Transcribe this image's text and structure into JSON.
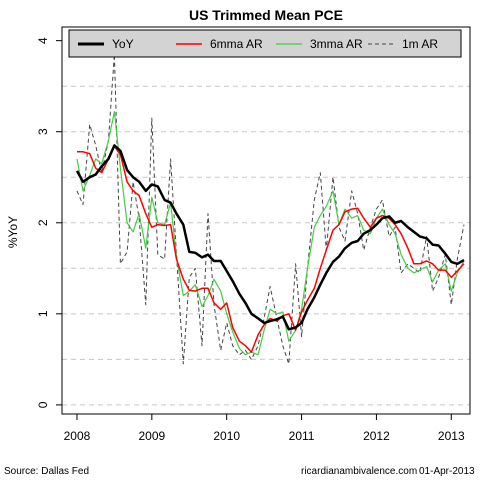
{
  "chart_data": {
    "type": "line",
    "title": "US Trimmed Mean PCE",
    "ylabel": "%YoY",
    "xlabel": "",
    "xlim": [
      2007.8,
      2013.25
    ],
    "ylim": [
      -0.1,
      4.15
    ],
    "x_ticks": [
      2008,
      2009,
      2010,
      2011,
      2012,
      2013
    ],
    "x_tick_labels": [
      "2008",
      "2009",
      "2010",
      "2011",
      "2012",
      "2013"
    ],
    "y_ticks": [
      0,
      1,
      2,
      3,
      4
    ],
    "y_tick_labels": [
      "0",
      "1",
      "2",
      "3",
      "4"
    ],
    "y_gridlines": [
      0,
      0.5,
      1,
      1.5,
      2,
      2.5,
      3,
      3.5
    ],
    "grid": "horizontal dashed",
    "legend_position": "top",
    "source": "Source: Dallas Fed",
    "credit": "ricardianambivalence.com",
    "date": "01-Apr-2013",
    "series": [
      {
        "name": "YoY",
        "color": "#000000",
        "width": 2.5,
        "dash": "",
        "values": [
          [
            2008.0,
            2.57
          ],
          [
            2008.08,
            2.45
          ],
          [
            2008.17,
            2.5
          ],
          [
            2008.25,
            2.53
          ],
          [
            2008.33,
            2.62
          ],
          [
            2008.42,
            2.7
          ],
          [
            2008.5,
            2.85
          ],
          [
            2008.58,
            2.79
          ],
          [
            2008.67,
            2.58
          ],
          [
            2008.75,
            2.5
          ],
          [
            2008.83,
            2.45
          ],
          [
            2008.92,
            2.35
          ],
          [
            2009.0,
            2.42
          ],
          [
            2009.08,
            2.4
          ],
          [
            2009.17,
            2.25
          ],
          [
            2009.25,
            2.22
          ],
          [
            2009.33,
            2.1
          ],
          [
            2009.42,
            1.98
          ],
          [
            2009.5,
            1.68
          ],
          [
            2009.58,
            1.67
          ],
          [
            2009.67,
            1.62
          ],
          [
            2009.75,
            1.65
          ],
          [
            2009.83,
            1.58
          ],
          [
            2009.92,
            1.58
          ],
          [
            2010.0,
            1.47
          ],
          [
            2010.08,
            1.36
          ],
          [
            2010.17,
            1.22
          ],
          [
            2010.25,
            1.12
          ],
          [
            2010.33,
            1.0
          ],
          [
            2010.42,
            0.95
          ],
          [
            2010.5,
            0.9
          ],
          [
            2010.58,
            0.92
          ],
          [
            2010.67,
            0.94
          ],
          [
            2010.75,
            0.97
          ],
          [
            2010.83,
            0.83
          ],
          [
            2010.92,
            0.85
          ],
          [
            2011.0,
            0.9
          ],
          [
            2011.08,
            1.05
          ],
          [
            2011.17,
            1.18
          ],
          [
            2011.25,
            1.32
          ],
          [
            2011.33,
            1.45
          ],
          [
            2011.42,
            1.57
          ],
          [
            2011.5,
            1.63
          ],
          [
            2011.58,
            1.72
          ],
          [
            2011.67,
            1.78
          ],
          [
            2011.75,
            1.8
          ],
          [
            2011.83,
            1.88
          ],
          [
            2011.92,
            1.92
          ],
          [
            2012.0,
            1.98
          ],
          [
            2012.08,
            2.05
          ],
          [
            2012.17,
            2.07
          ],
          [
            2012.25,
            2.0
          ],
          [
            2012.33,
            2.02
          ],
          [
            2012.42,
            1.95
          ],
          [
            2012.5,
            1.9
          ],
          [
            2012.58,
            1.85
          ],
          [
            2012.67,
            1.83
          ],
          [
            2012.75,
            1.76
          ],
          [
            2012.83,
            1.75
          ],
          [
            2012.92,
            1.66
          ],
          [
            2013.0,
            1.57
          ],
          [
            2013.08,
            1.55
          ],
          [
            2013.17,
            1.59
          ]
        ]
      },
      {
        "name": "6mma AR",
        "color": "#ff0000",
        "width": 1.5,
        "dash": "",
        "values": [
          [
            2008.0,
            2.78
          ],
          [
            2008.08,
            2.78
          ],
          [
            2008.17,
            2.76
          ],
          [
            2008.25,
            2.6
          ],
          [
            2008.33,
            2.55
          ],
          [
            2008.42,
            2.7
          ],
          [
            2008.5,
            2.84
          ],
          [
            2008.58,
            2.75
          ],
          [
            2008.67,
            2.45
          ],
          [
            2008.75,
            2.35
          ],
          [
            2008.83,
            2.3
          ],
          [
            2008.92,
            2.1
          ],
          [
            2009.0,
            1.95
          ],
          [
            2009.08,
            1.98
          ],
          [
            2009.17,
            1.97
          ],
          [
            2009.25,
            1.98
          ],
          [
            2009.33,
            1.6
          ],
          [
            2009.42,
            1.38
          ],
          [
            2009.5,
            1.26
          ],
          [
            2009.58,
            1.25
          ],
          [
            2009.67,
            1.28
          ],
          [
            2009.75,
            1.28
          ],
          [
            2009.83,
            1.12
          ],
          [
            2009.92,
            1.05
          ],
          [
            2010.0,
            1.12
          ],
          [
            2010.08,
            0.85
          ],
          [
            2010.17,
            0.7
          ],
          [
            2010.25,
            0.65
          ],
          [
            2010.33,
            0.58
          ],
          [
            2010.42,
            0.77
          ],
          [
            2010.5,
            0.88
          ],
          [
            2010.58,
            0.95
          ],
          [
            2010.67,
            0.92
          ],
          [
            2010.75,
            0.98
          ],
          [
            2010.83,
            1.0
          ],
          [
            2010.92,
            0.82
          ],
          [
            2011.0,
            1.02
          ],
          [
            2011.08,
            1.15
          ],
          [
            2011.17,
            1.28
          ],
          [
            2011.25,
            1.5
          ],
          [
            2011.33,
            1.7
          ],
          [
            2011.42,
            1.92
          ],
          [
            2011.5,
            1.98
          ],
          [
            2011.58,
            2.12
          ],
          [
            2011.67,
            2.15
          ],
          [
            2011.75,
            2.16
          ],
          [
            2011.83,
            2.05
          ],
          [
            2011.92,
            1.95
          ],
          [
            2012.0,
            2.05
          ],
          [
            2012.08,
            2.08
          ],
          [
            2012.17,
            2.05
          ],
          [
            2012.25,
            1.98
          ],
          [
            2012.33,
            1.88
          ],
          [
            2012.42,
            1.72
          ],
          [
            2012.5,
            1.55
          ],
          [
            2012.58,
            1.55
          ],
          [
            2012.67,
            1.58
          ],
          [
            2012.75,
            1.55
          ],
          [
            2012.83,
            1.48
          ],
          [
            2012.92,
            1.48
          ],
          [
            2013.0,
            1.4
          ],
          [
            2013.08,
            1.47
          ],
          [
            2013.17,
            1.55
          ]
        ]
      },
      {
        "name": "3mma AR",
        "color": "#44cc44",
        "width": 1.2,
        "dash": "",
        "values": [
          [
            2008.0,
            2.7
          ],
          [
            2008.08,
            2.35
          ],
          [
            2008.17,
            2.52
          ],
          [
            2008.25,
            2.7
          ],
          [
            2008.33,
            2.65
          ],
          [
            2008.42,
            2.9
          ],
          [
            2008.5,
            3.22
          ],
          [
            2008.58,
            2.6
          ],
          [
            2008.67,
            2.0
          ],
          [
            2008.75,
            1.9
          ],
          [
            2008.83,
            2.1
          ],
          [
            2008.92,
            1.72
          ],
          [
            2009.0,
            2.28
          ],
          [
            2009.08,
            2.0
          ],
          [
            2009.17,
            1.98
          ],
          [
            2009.25,
            2.22
          ],
          [
            2009.33,
            1.62
          ],
          [
            2009.42,
            1.2
          ],
          [
            2009.5,
            1.25
          ],
          [
            2009.58,
            1.32
          ],
          [
            2009.67,
            1.08
          ],
          [
            2009.75,
            1.2
          ],
          [
            2009.83,
            1.38
          ],
          [
            2009.92,
            1.25
          ],
          [
            2010.0,
            1.0
          ],
          [
            2010.08,
            0.8
          ],
          [
            2010.17,
            0.62
          ],
          [
            2010.25,
            0.55
          ],
          [
            2010.33,
            0.58
          ],
          [
            2010.42,
            0.55
          ],
          [
            2010.5,
            0.82
          ],
          [
            2010.58,
            1.05
          ],
          [
            2010.67,
            1.0
          ],
          [
            2010.75,
            1.02
          ],
          [
            2010.83,
            0.7
          ],
          [
            2010.92,
            0.82
          ],
          [
            2011.0,
            1.05
          ],
          [
            2011.08,
            1.5
          ],
          [
            2011.17,
            1.95
          ],
          [
            2011.25,
            2.08
          ],
          [
            2011.33,
            2.18
          ],
          [
            2011.42,
            2.35
          ],
          [
            2011.5,
            1.98
          ],
          [
            2011.58,
            2.15
          ],
          [
            2011.67,
            2.05
          ],
          [
            2011.75,
            2.08
          ],
          [
            2011.83,
            1.92
          ],
          [
            2011.92,
            1.88
          ],
          [
            2012.0,
            2.05
          ],
          [
            2012.08,
            2.15
          ],
          [
            2012.17,
            1.98
          ],
          [
            2012.25,
            1.88
          ],
          [
            2012.33,
            1.65
          ],
          [
            2012.42,
            1.5
          ],
          [
            2012.5,
            1.45
          ],
          [
            2012.58,
            1.48
          ],
          [
            2012.67,
            1.52
          ],
          [
            2012.75,
            1.35
          ],
          [
            2012.83,
            1.48
          ],
          [
            2012.92,
            1.55
          ],
          [
            2013.0,
            1.25
          ],
          [
            2013.08,
            1.45
          ],
          [
            2013.17,
            1.58
          ]
        ]
      },
      {
        "name": "1m AR",
        "color": "#444444",
        "width": 1.0,
        "dash": "4,3",
        "values": [
          [
            2008.0,
            2.35
          ],
          [
            2008.08,
            2.2
          ],
          [
            2008.17,
            3.08
          ],
          [
            2008.25,
            2.85
          ],
          [
            2008.33,
            2.55
          ],
          [
            2008.42,
            2.9
          ],
          [
            2008.5,
            3.85
          ],
          [
            2008.58,
            1.55
          ],
          [
            2008.67,
            1.68
          ],
          [
            2008.75,
            2.45
          ],
          [
            2008.83,
            2.05
          ],
          [
            2008.92,
            1.1
          ],
          [
            2009.0,
            3.15
          ],
          [
            2009.08,
            1.65
          ],
          [
            2009.17,
            1.6
          ],
          [
            2009.25,
            2.7
          ],
          [
            2009.33,
            1.65
          ],
          [
            2009.42,
            0.45
          ],
          [
            2009.5,
            1.4
          ],
          [
            2009.58,
            1.5
          ],
          [
            2009.67,
            0.65
          ],
          [
            2009.75,
            2.1
          ],
          [
            2009.83,
            1.1
          ],
          [
            2009.92,
            0.6
          ],
          [
            2010.0,
            0.9
          ],
          [
            2010.08,
            0.65
          ],
          [
            2010.17,
            0.55
          ],
          [
            2010.25,
            0.6
          ],
          [
            2010.33,
            0.5
          ],
          [
            2010.42,
            0.65
          ],
          [
            2010.5,
            0.95
          ],
          [
            2010.58,
            1.3
          ],
          [
            2010.67,
            0.95
          ],
          [
            2010.75,
            0.65
          ],
          [
            2010.83,
            0.45
          ],
          [
            2010.92,
            1.55
          ],
          [
            2011.0,
            0.75
          ],
          [
            2011.08,
            1.5
          ],
          [
            2011.17,
            2.25
          ],
          [
            2011.25,
            2.55
          ],
          [
            2011.33,
            1.7
          ],
          [
            2011.42,
            2.5
          ],
          [
            2011.5,
            1.95
          ],
          [
            2011.58,
            1.8
          ],
          [
            2011.67,
            2.35
          ],
          [
            2011.75,
            2.1
          ],
          [
            2011.83,
            1.7
          ],
          [
            2011.92,
            1.95
          ],
          [
            2012.0,
            2.15
          ],
          [
            2012.08,
            2.25
          ],
          [
            2012.17,
            1.85
          ],
          [
            2012.25,
            1.95
          ],
          [
            2012.33,
            1.45
          ],
          [
            2012.42,
            1.55
          ],
          [
            2012.5,
            1.5
          ],
          [
            2012.58,
            1.45
          ],
          [
            2012.67,
            1.85
          ],
          [
            2012.75,
            1.25
          ],
          [
            2012.83,
            1.4
          ],
          [
            2012.92,
            1.65
          ],
          [
            2013.0,
            1.1
          ],
          [
            2013.08,
            1.6
          ],
          [
            2013.17,
            1.98
          ]
        ]
      }
    ]
  }
}
